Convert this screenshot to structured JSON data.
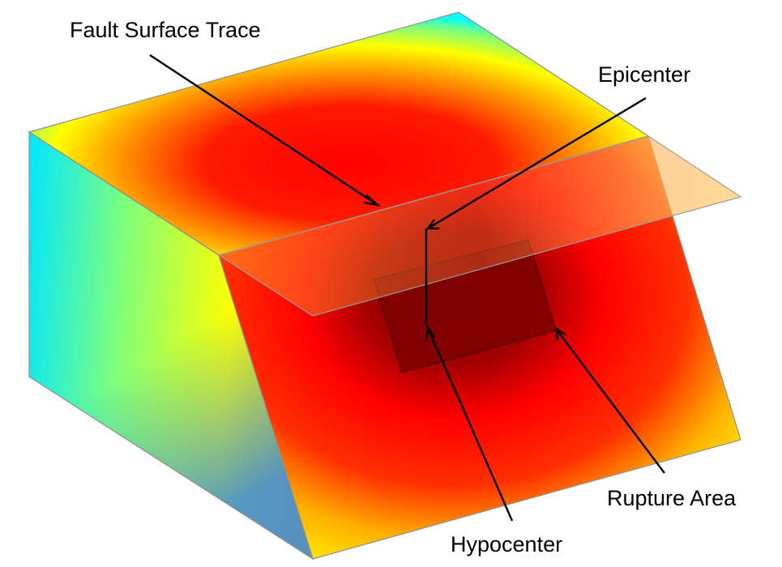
{
  "labels": {
    "fault_surface_trace": "Fault Surface Trace",
    "epicenter": "Epicenter",
    "rupture_area": "Rupture Area",
    "hypocenter": "Hypocenter"
  },
  "colors": {
    "deep_red": "#800000",
    "red": "#ff0000",
    "yellow": "#ffff00",
    "green_yellow": "#b4ff3c",
    "cyan": "#00ffff",
    "blue": "#1e8cff",
    "edge": "#8f8f8f",
    "annotation": "#000000"
  }
}
